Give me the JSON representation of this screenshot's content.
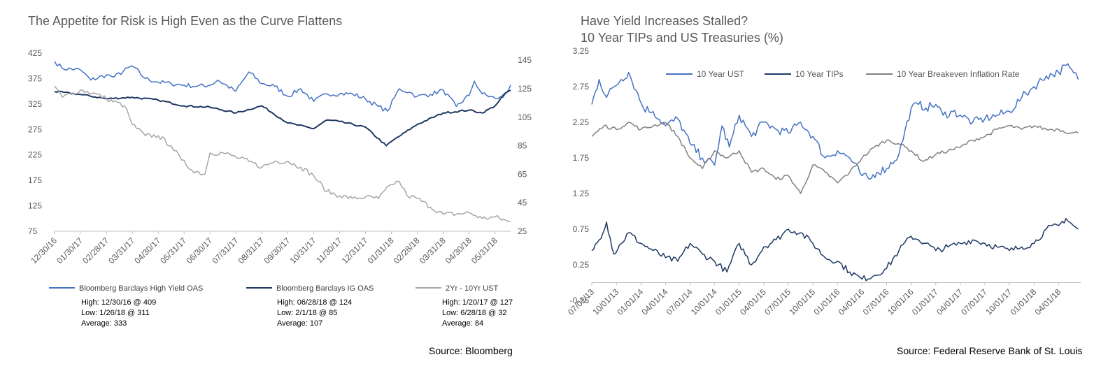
{
  "chart_data": [
    {
      "type": "line",
      "title": "The Appetite for Risk is High Even as the Curve Flattens",
      "source": "Source: Bloomberg",
      "x_tick_labels": [
        "12/30/16",
        "01/30/17",
        "02/28/17",
        "03/31/17",
        "04/30/17",
        "05/31/17",
        "06/30/17",
        "07/31/17",
        "08/31/17",
        "09/30/17",
        "10/31/17",
        "11/30/17",
        "12/31/17",
        "01/31/18",
        "02/28/18",
        "03/31/18",
        "04/30/18",
        "05/31/18"
      ],
      "y_left": {
        "ylim": [
          75,
          425
        ],
        "ticks": [
          "425",
          "375",
          "325",
          "275",
          "225",
          "175",
          "125",
          "75"
        ]
      },
      "y_right": {
        "ylim": [
          25,
          150
        ],
        "ticks": [
          "145",
          "125",
          "105",
          "85",
          "65",
          "45",
          "25"
        ]
      },
      "legend_placement": "bottom",
      "grid": false,
      "series": [
        {
          "name": "Bloomberg Barclays High Yield OAS",
          "axis": "left",
          "color": "#4472c4",
          "stats": [
            "High: 12/30/16 @ 409",
            "Low: 1/26/18 @ 311",
            "Average: 333"
          ],
          "x": [
            0,
            0.3,
            1,
            1.4,
            2,
            2.3,
            3,
            3.5,
            4,
            4.5,
            5,
            5.5,
            6,
            6.3,
            7,
            7.5,
            8,
            8.5,
            9,
            9.5,
            10,
            10.5,
            11,
            11.5,
            12,
            12.5,
            12.85,
            13.3,
            13.7,
            14,
            14.5,
            15,
            15.5,
            16,
            16.2,
            16.5,
            17,
            17.3,
            17.6
          ],
          "y": [
            409,
            395,
            392,
            372,
            382,
            378,
            400,
            375,
            368,
            365,
            362,
            360,
            362,
            372,
            350,
            388,
            365,
            360,
            340,
            355,
            330,
            345,
            345,
            345,
            335,
            320,
            311,
            355,
            348,
            340,
            344,
            352,
            320,
            342,
            370,
            345,
            336,
            338,
            362
          ]
        },
        {
          "name": "Bloomberg Barclays IG OAS",
          "axis": "right",
          "color": "#1f3864",
          "stats": [
            "High: 06/28/18 @ 124",
            "Low: 2/1/18 @ 85",
            "Average: 107"
          ],
          "x": [
            0,
            1,
            2,
            3,
            4,
            5,
            6,
            7,
            8,
            9,
            10,
            10.5,
            11,
            12,
            12.8,
            13,
            14,
            15,
            16,
            16.5,
            17,
            17.4,
            17.6
          ],
          "y": [
            123,
            121,
            118,
            119,
            117,
            113,
            112,
            108,
            113,
            101,
            97,
            103,
            102,
            98,
            85,
            88,
            100,
            108,
            110,
            108,
            113,
            122,
            124
          ]
        },
        {
          "name": "2Yr - 10Yr UST",
          "axis": "right",
          "color": "#a6a6a6",
          "stats": [
            "High: 1/20/17 @ 127",
            "Low: 6/28/18 @ 32",
            "Average: 84"
          ],
          "x": [
            0,
            0.3,
            0.7,
            1,
            1.5,
            2,
            2.7,
            3,
            3.5,
            4,
            4.5,
            4.9,
            5.3,
            5.8,
            6,
            6.5,
            7,
            7.5,
            8,
            8.5,
            9,
            9.5,
            10,
            10.5,
            11,
            11.5,
            12,
            12.5,
            13,
            13.3,
            13.6,
            14,
            14.5,
            15,
            15.5,
            16,
            16.5,
            17,
            17.5,
            17.6
          ],
          "y": [
            127,
            119,
            122,
            124,
            122,
            118,
            113,
            100,
            92,
            92,
            85,
            75,
            68,
            65,
            80,
            80,
            77,
            74,
            70,
            74,
            74,
            70,
            64,
            53,
            50,
            48,
            49,
            48,
            58,
            60,
            50,
            48,
            42,
            37,
            37,
            38,
            34,
            35,
            32,
            32
          ]
        }
      ]
    },
    {
      "type": "line",
      "title": "Have Yield Increases Stalled?",
      "subtitle": "10 Year TIPs and US Treasuries (%)",
      "source": "Source: Federal Reserve Bank of St. Louis",
      "x_tick_labels": [
        "07/01/13",
        "10/01/13",
        "01/01/14",
        "04/01/14",
        "07/01/14",
        "10/01/14",
        "01/01/15",
        "04/01/15",
        "07/01/15",
        "10/01/15",
        "01/01/16",
        "04/01/16",
        "07/01/16",
        "10/01/16",
        "01/01/17",
        "04/01/17",
        "07/01/17",
        "10/01/17",
        "01/01/18",
        "04/01/18"
      ],
      "ylim": [
        -0.25,
        3.25
      ],
      "y_ticks": [
        "3.25",
        "2.75",
        "2.25",
        "1.75",
        "1.25",
        "0.75",
        "0.25",
        "-0.25"
      ],
      "legend_placement": "top",
      "grid": false,
      "series": [
        {
          "name": "10 Year UST",
          "color": "#4472c4",
          "x": [
            0,
            0.3,
            0.6,
            0.9,
            1.2,
            1.5,
            1.8,
            2.1,
            2.5,
            3,
            3.5,
            4,
            4.5,
            5,
            5.3,
            5.6,
            6,
            6.5,
            7,
            7.5,
            8,
            8.5,
            9,
            9.5,
            10,
            10.5,
            11,
            11.3,
            11.6,
            12,
            12.5,
            13,
            13.3,
            13.6,
            14,
            14.3,
            14.7,
            15,
            15.5,
            16,
            16.5,
            17,
            17.5,
            18,
            18.5,
            19,
            19.3,
            19.6,
            19.8
          ],
          "y": [
            2.5,
            2.85,
            2.6,
            2.75,
            2.85,
            2.95,
            2.7,
            2.45,
            2.4,
            2.2,
            2.3,
            1.95,
            1.75,
            1.65,
            2.2,
            1.9,
            2.35,
            2.05,
            2.25,
            2.15,
            2.1,
            2.25,
            2.05,
            1.75,
            1.85,
            1.75,
            1.5,
            1.45,
            1.55,
            1.6,
            1.8,
            2.45,
            2.5,
            2.45,
            2.5,
            2.35,
            2.4,
            2.35,
            2.25,
            2.3,
            2.35,
            2.4,
            2.6,
            2.75,
            2.9,
            2.95,
            3.05,
            2.95,
            2.85
          ]
        },
        {
          "name": "10 Year TIPs",
          "color": "#1f3864",
          "x": [
            0,
            0.3,
            0.6,
            0.9,
            1.2,
            1.5,
            2,
            2.5,
            3,
            3.5,
            4,
            4.5,
            5,
            5.5,
            6,
            6.5,
            7,
            7.5,
            8,
            8.5,
            9,
            9.5,
            10,
            10.5,
            11,
            11.5,
            12,
            12.5,
            13,
            13.3,
            13.6,
            14,
            14.5,
            15,
            15.5,
            16,
            16.5,
            17,
            17.5,
            18,
            18.5,
            19,
            19.3,
            19.6,
            19.8
          ],
          "y": [
            0.45,
            0.6,
            0.85,
            0.4,
            0.55,
            0.7,
            0.55,
            0.45,
            0.35,
            0.3,
            0.55,
            0.4,
            0.3,
            0.15,
            0.55,
            0.25,
            0.5,
            0.6,
            0.75,
            0.7,
            0.55,
            0.35,
            0.3,
            0.15,
            0.05,
            0.1,
            0.2,
            0.45,
            0.65,
            0.6,
            0.55,
            0.45,
            0.5,
            0.55,
            0.6,
            0.55,
            0.5,
            0.45,
            0.5,
            0.55,
            0.75,
            0.8,
            0.9,
            0.8,
            0.75
          ]
        },
        {
          "name": "10 Year Breakeven Inflation Rate",
          "color": "#808080",
          "x": [
            0,
            0.5,
            1,
            1.5,
            2,
            2.5,
            3,
            3.5,
            4,
            4.5,
            5,
            5.5,
            6,
            6.5,
            7,
            7.5,
            8,
            8.5,
            9,
            9.5,
            10,
            10.5,
            11,
            11.5,
            12,
            12.5,
            13,
            13.5,
            14,
            14.5,
            15,
            15.5,
            16,
            16.5,
            17,
            17.5,
            18,
            18.5,
            19,
            19.5,
            19.8
          ],
          "y": [
            2.05,
            2.2,
            2.15,
            2.25,
            2.15,
            2.2,
            2.25,
            2.05,
            1.75,
            1.6,
            1.85,
            1.75,
            1.85,
            1.55,
            1.6,
            1.45,
            1.5,
            1.25,
            1.65,
            1.55,
            1.4,
            1.55,
            1.75,
            1.9,
            2.0,
            1.95,
            1.85,
            1.7,
            1.8,
            1.85,
            1.9,
            2.0,
            2.05,
            2.15,
            2.2,
            2.15,
            2.2,
            2.15,
            2.15,
            2.1,
            2.1
          ]
        }
      ]
    }
  ]
}
